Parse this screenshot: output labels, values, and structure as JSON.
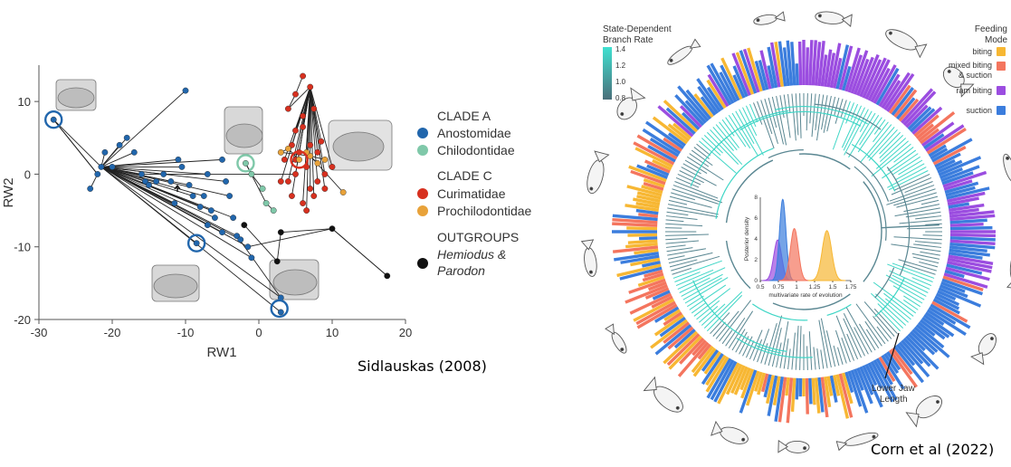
{
  "captions": {
    "left": "Sidlauskas (2008)",
    "right": "Corn et al (2022)"
  },
  "colors": {
    "anostomidae": "#2166ac",
    "chilodontidae": "#7fc8a9",
    "curimatidae": "#d7301f",
    "prochilodontidae": "#e8a23a",
    "outgroup": "#111111",
    "biting": "#f7b733",
    "mixed": "#f4755e",
    "ram": "#9b4de0",
    "suction": "#3b7ddd",
    "branch_low": "#4a7a86",
    "branch_high": "#3fe0d0"
  },
  "chart_data": [
    {
      "type": "scatter",
      "title": "",
      "xlabel": "RW1",
      "ylabel": "RW2",
      "xlim": [
        -30,
        20
      ],
      "ylim": [
        -20,
        15
      ],
      "xticks": [
        -30,
        -20,
        -10,
        0,
        10,
        20
      ],
      "yticks": [
        10,
        0,
        -10,
        -20
      ],
      "legend": {
        "placement": "right",
        "groups": [
          {
            "header": "CLADE A",
            "entries": [
              {
                "label": "Anostomidae",
                "color_key": "anostomidae"
              },
              {
                "label": "Chilodontidae",
                "color_key": "chilodontidae"
              }
            ]
          },
          {
            "header": "CLADE C",
            "entries": [
              {
                "label": "Curimatidae",
                "color_key": "curimatidae"
              },
              {
                "label": "Prochilodontidae",
                "color_key": "prochilodontidae"
              }
            ]
          },
          {
            "header": "OUTGROUPS",
            "entries": [
              {
                "label": "Hemiodus &",
                "label2": "Parodon",
                "color_key": "outgroup"
              }
            ]
          }
        ]
      },
      "series": [
        {
          "name": "Anostomidae",
          "points": [
            [
              -28,
              7.5
            ],
            [
              -22,
              0
            ],
            [
              -23,
              -2
            ],
            [
              -21.5,
              1
            ],
            [
              -21,
              3
            ],
            [
              -20,
              1
            ],
            [
              -19,
              4
            ],
            [
              -18,
              5
            ],
            [
              -17,
              3
            ],
            [
              -16,
              0
            ],
            [
              -15.5,
              -1
            ],
            [
              -15,
              -1.5
            ],
            [
              -14,
              -1
            ],
            [
              -13,
              0
            ],
            [
              -12,
              -1
            ],
            [
              -11,
              2
            ],
            [
              -10.5,
              1
            ],
            [
              -10,
              11.5
            ],
            [
              -9.5,
              -1.5
            ],
            [
              -9,
              -3
            ],
            [
              -8,
              -4.5
            ],
            [
              -7.5,
              -3
            ],
            [
              -7,
              0
            ],
            [
              -6.5,
              -5
            ],
            [
              -6,
              -6
            ],
            [
              -5,
              2
            ],
            [
              -5,
              -8
            ],
            [
              -4.5,
              -1
            ],
            [
              -4,
              -3
            ],
            [
              -3,
              -8.5
            ],
            [
              -2.5,
              -9
            ],
            [
              -1.5,
              -10
            ],
            [
              -1,
              -11.5
            ],
            [
              3,
              -17
            ],
            [
              3,
              -19
            ],
            [
              -8.5,
              -9.5
            ],
            [
              -11.5,
              -4
            ],
            [
              -7,
              -7
            ],
            [
              -3.5,
              -6
            ]
          ]
        },
        {
          "name": "Chilodontidae",
          "points": [
            [
              -1.8,
              1.5
            ],
            [
              -1,
              0
            ],
            [
              0.5,
              -2
            ],
            [
              1,
              -4
            ],
            [
              2,
              -5
            ]
          ]
        },
        {
          "name": "Curimatidae",
          "points": [
            [
              4,
              9
            ],
            [
              5,
              11
            ],
            [
              6,
              13.5
            ],
            [
              7,
              12
            ],
            [
              6,
              8
            ],
            [
              5,
              6
            ],
            [
              4.5,
              4
            ],
            [
              5.5,
              3
            ],
            [
              7,
              4
            ],
            [
              8,
              3
            ],
            [
              6.5,
              1
            ],
            [
              5,
              0
            ],
            [
              4,
              -1
            ],
            [
              4.5,
              -3
            ],
            [
              6,
              -4
            ],
            [
              7.5,
              -3
            ],
            [
              8,
              -1
            ],
            [
              9,
              0
            ],
            [
              10,
              1
            ],
            [
              9,
              -2
            ],
            [
              7,
              -2
            ],
            [
              3,
              -1
            ],
            [
              5,
              2
            ],
            [
              6.5,
              -5
            ],
            [
              8.5,
              4.5
            ],
            [
              6,
              6.5
            ],
            [
              3.5,
              2
            ],
            [
              7.5,
              9
            ]
          ]
        },
        {
          "name": "Prochilodontidae",
          "points": [
            [
              3,
              3
            ],
            [
              4,
              3.5
            ],
            [
              5.5,
              2
            ],
            [
              7,
              2.5
            ],
            [
              8,
              1.5
            ],
            [
              9,
              2
            ],
            [
              6.5,
              3
            ],
            [
              11.5,
              -2.5
            ]
          ]
        },
        {
          "name": "Hemiodus & Parodon",
          "points": [
            [
              3,
              -8
            ],
            [
              10,
              -7.5
            ],
            [
              17.5,
              -14
            ],
            [
              2.5,
              -12
            ],
            [
              -2,
              -7
            ]
          ]
        }
      ],
      "highlighted": [
        {
          "x": -28,
          "y": 7.5,
          "color_key": "anostomidae"
        },
        {
          "x": -8.5,
          "y": -9.5,
          "color_key": "anostomidae"
        },
        {
          "x": 2.8,
          "y": -18.5,
          "color_key": "anostomidae"
        },
        {
          "x": -1.8,
          "y": 1.5,
          "color_key": "chilodontidae"
        },
        {
          "x": 5.5,
          "y": 2,
          "color_key": "curimatidae"
        }
      ]
    },
    {
      "type": "area",
      "title": "",
      "xlabel": "multivariate rate of evolution",
      "ylabel": "Posterior density",
      "xlim": [
        0.5,
        1.75
      ],
      "ylim": [
        0,
        8
      ],
      "xticks": [
        0.5,
        0.75,
        1,
        1.25,
        1.5,
        1.75
      ],
      "xtick_labels": [
        "0.5",
        "0.75",
        "1",
        "1.25",
        "1.5",
        "1.75"
      ],
      "yticks": [
        0,
        2,
        4,
        6,
        8
      ],
      "series": [
        {
          "name": "ram biting",
          "mean": 0.74,
          "sd": 0.055,
          "peak": 3.9,
          "color_key": "ram"
        },
        {
          "name": "suction",
          "mean": 0.81,
          "sd": 0.045,
          "peak": 7.8,
          "color_key": "suction"
        },
        {
          "name": "mixed biting & suction",
          "mean": 0.97,
          "sd": 0.055,
          "peak": 5.0,
          "color_key": "mixed"
        },
        {
          "name": "biting",
          "mean": 1.42,
          "sd": 0.065,
          "peak": 4.8,
          "color_key": "biting"
        }
      ]
    }
  ],
  "phylogeny": {
    "rate_legend": {
      "title_line1": "State-Dependent",
      "title_line2": "Branch Rate",
      "ticks": [
        "1.4",
        "1.2",
        "1.0",
        "0.8"
      ]
    },
    "feeding_legend": {
      "title_line1": "Feeding",
      "title_line2": "Mode",
      "entries": [
        {
          "label": "biting",
          "color_key": "biting"
        },
        {
          "label": "mixed biting",
          "label2": "& suction",
          "color_key": "mixed"
        },
        {
          "label": "ram biting",
          "color_key": "ram"
        },
        {
          "label": "suction",
          "color_key": "suction"
        }
      ]
    },
    "annotation_line1": "Lower Jaw",
    "annotation_line2": "Length"
  }
}
